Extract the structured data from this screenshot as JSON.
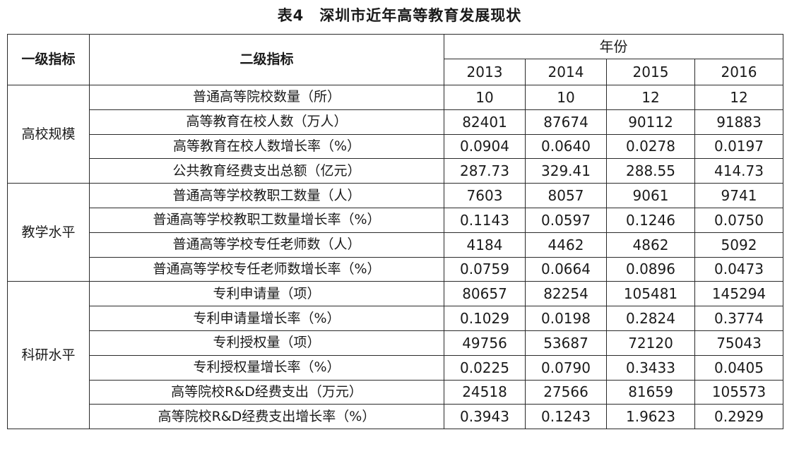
{
  "title": {
    "number": "表4",
    "text": "深圳市近年高等教育发展现状"
  },
  "header": {
    "level1": "一级指标",
    "level2": "二级指标",
    "year_group": "年份",
    "years": [
      "2013",
      "2014",
      "2015",
      "2016"
    ]
  },
  "groups": [
    {
      "category": "高校规模",
      "rows": [
        {
          "indicator": "普通高等院校数量（所）",
          "values": [
            "10",
            "10",
            "12",
            "12"
          ]
        },
        {
          "indicator": "高等教育在校人数（万人）",
          "values": [
            "82401",
            "87674",
            "90112",
            "91883"
          ]
        },
        {
          "indicator": "高等教育在校人数增长率（%）",
          "values": [
            "0.0904",
            "0.0640",
            "0.0278",
            "0.0197"
          ]
        },
        {
          "indicator": "公共教育经费支出总额（亿元）",
          "values": [
            "287.73",
            "329.41",
            "288.55",
            "414.73"
          ]
        }
      ]
    },
    {
      "category": "教学水平",
      "rows": [
        {
          "indicator": "普通高等学校教职工数量（人）",
          "values": [
            "7603",
            "8057",
            "9061",
            "9741"
          ]
        },
        {
          "indicator": "普通高等学校教职工数量增长率（%）",
          "values": [
            "0.1143",
            "0.0597",
            "0.1246",
            "0.0750"
          ]
        },
        {
          "indicator": "普通高等学校专任老师数（人）",
          "values": [
            "4184",
            "4462",
            "4862",
            "5092"
          ]
        },
        {
          "indicator": "普通高等学校专任老师数增长率（%）",
          "values": [
            "0.0759",
            "0.0664",
            "0.0896",
            "0.0473"
          ]
        }
      ]
    },
    {
      "category": "科研水平",
      "rows": [
        {
          "indicator": "专利申请量（项）",
          "values": [
            "80657",
            "82254",
            "105481",
            "145294"
          ]
        },
        {
          "indicator": "专利申请量增长率（%）",
          "values": [
            "0.1029",
            "0.0198",
            "0.2824",
            "0.3774"
          ]
        },
        {
          "indicator": "专利授权量（项）",
          "values": [
            "49756",
            "53687",
            "72120",
            "75043"
          ]
        },
        {
          "indicator": "专利授权量增长率（%）",
          "values": [
            "0.0225",
            "0.0790",
            "0.3433",
            "0.0405"
          ]
        },
        {
          "indicator": "高等院校R&D经费支出（万元）",
          "values": [
            "24518",
            "27566",
            "81659",
            "105573"
          ]
        },
        {
          "indicator": "高等院校R&D经费支出增长率（%）",
          "values": [
            "0.3943",
            "0.1243",
            "1.9623",
            "0.2929"
          ]
        }
      ]
    }
  ]
}
